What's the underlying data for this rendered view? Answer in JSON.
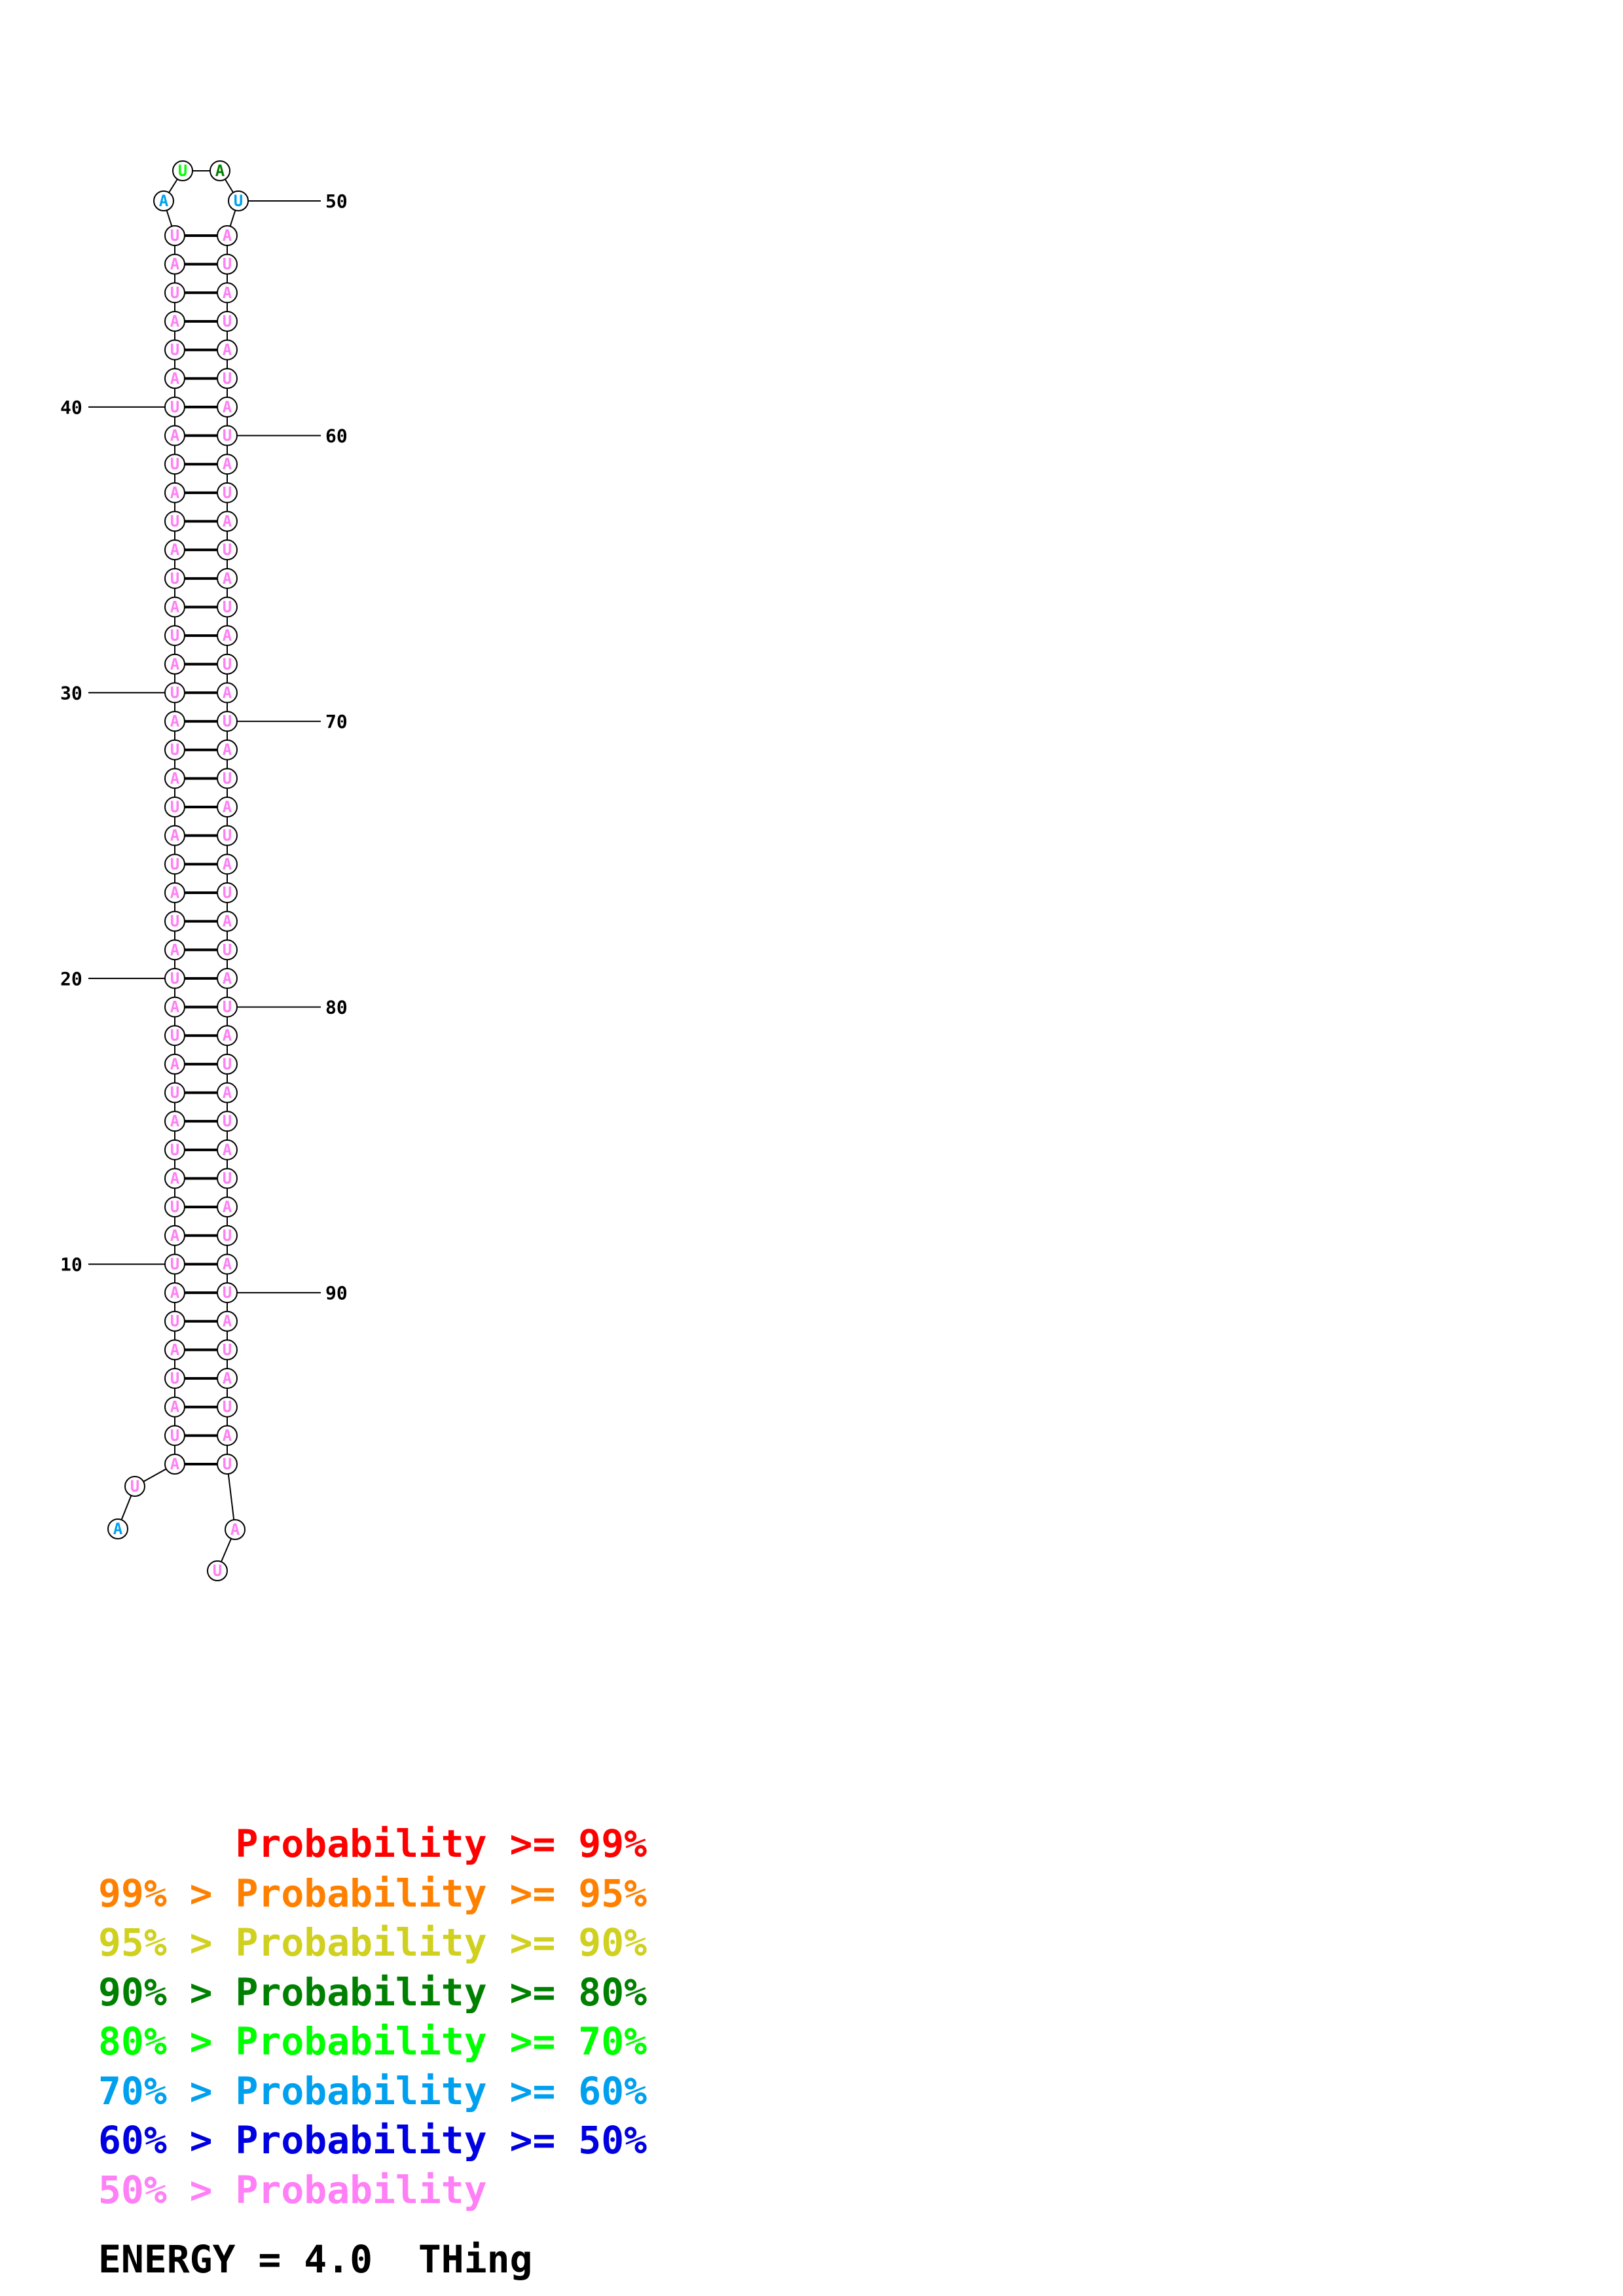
{
  "sequence": "AUAUAUAUAUAUAUAUAUAUAUAUAUAUAUAUAUAUAUAUAUAUAUAUAUAUAUAUAUAUAUAUAUAUAUAUAUAUAUAUAUAUAUAUAUAUAUAUAU",
  "pair_range": {
    "first": 3,
    "last": 46,
    "partner_sum": 99
  },
  "position_labels": [
    {
      "pos": 10,
      "text": "10"
    },
    {
      "pos": 20,
      "text": "20"
    },
    {
      "pos": 30,
      "text": "30"
    },
    {
      "pos": 40,
      "text": "40"
    },
    {
      "pos": 50,
      "text": "50"
    },
    {
      "pos": 60,
      "text": "60"
    },
    {
      "pos": 70,
      "text": "70"
    },
    {
      "pos": 80,
      "text": "80"
    },
    {
      "pos": 90,
      "text": "90"
    }
  ],
  "base_colors": {
    "default": "#ff7ff6",
    "overrides": {
      "1": "#00a0ef",
      "47": "#00a0ef",
      "48": "#00ff00",
      "49": "#008000",
      "50": "#00a0ef",
      "100": "#00a0ef"
    }
  },
  "legend": [
    {
      "prefix": "    ",
      "left": "",
      "mid": "Probability",
      "right": ">= 99%",
      "color": "#ff0000"
    },
    {
      "prefix": "",
      "left": "99% >",
      "mid": "Probability",
      "right": ">= 95%",
      "color": "#ff8000"
    },
    {
      "prefix": "",
      "left": "95% >",
      "mid": "Probability",
      "right": ">= 90%",
      "color": "#d0d020"
    },
    {
      "prefix": "",
      "left": "90% >",
      "mid": "Probability",
      "right": ">= 80%",
      "color": "#008000"
    },
    {
      "prefix": "",
      "left": "80% >",
      "mid": "Probability",
      "right": ">= 70%",
      "color": "#00ff00"
    },
    {
      "prefix": "",
      "left": "70% >",
      "mid": "Probability",
      "right": ">= 60%",
      "color": "#00a0ef"
    },
    {
      "prefix": "",
      "left": "60% >",
      "mid": "Probability",
      "right": ">= 50%",
      "color": "#0000e0"
    },
    {
      "prefix": "",
      "left": "50% >",
      "mid": "Probability",
      "right": "",
      "color": "#ff7ff6"
    }
  ],
  "energy": {
    "label": "ENERGY = 4.0",
    "name": "THing"
  }
}
